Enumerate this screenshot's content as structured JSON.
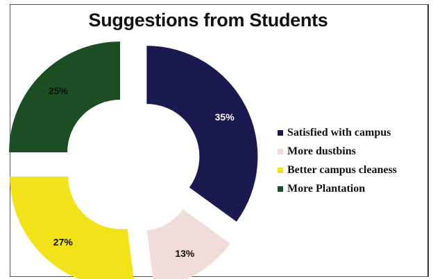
{
  "chart_data": {
    "type": "donut",
    "title": "Suggestions from Students",
    "series": [
      {
        "name": "Satisfied with campus",
        "value": 35,
        "label": "35%",
        "color": "#1a1a50"
      },
      {
        "name": "More dustbins",
        "value": 13,
        "label": "13%",
        "color": "#f0dcd8"
      },
      {
        "name": "Better campus cleaness",
        "value": 27,
        "label": "27%",
        "color": "#f2e21a"
      },
      {
        "name": "More Plantation",
        "value": 25,
        "label": "25%",
        "color": "#1d4d22"
      }
    ],
    "legend_position": "right"
  }
}
